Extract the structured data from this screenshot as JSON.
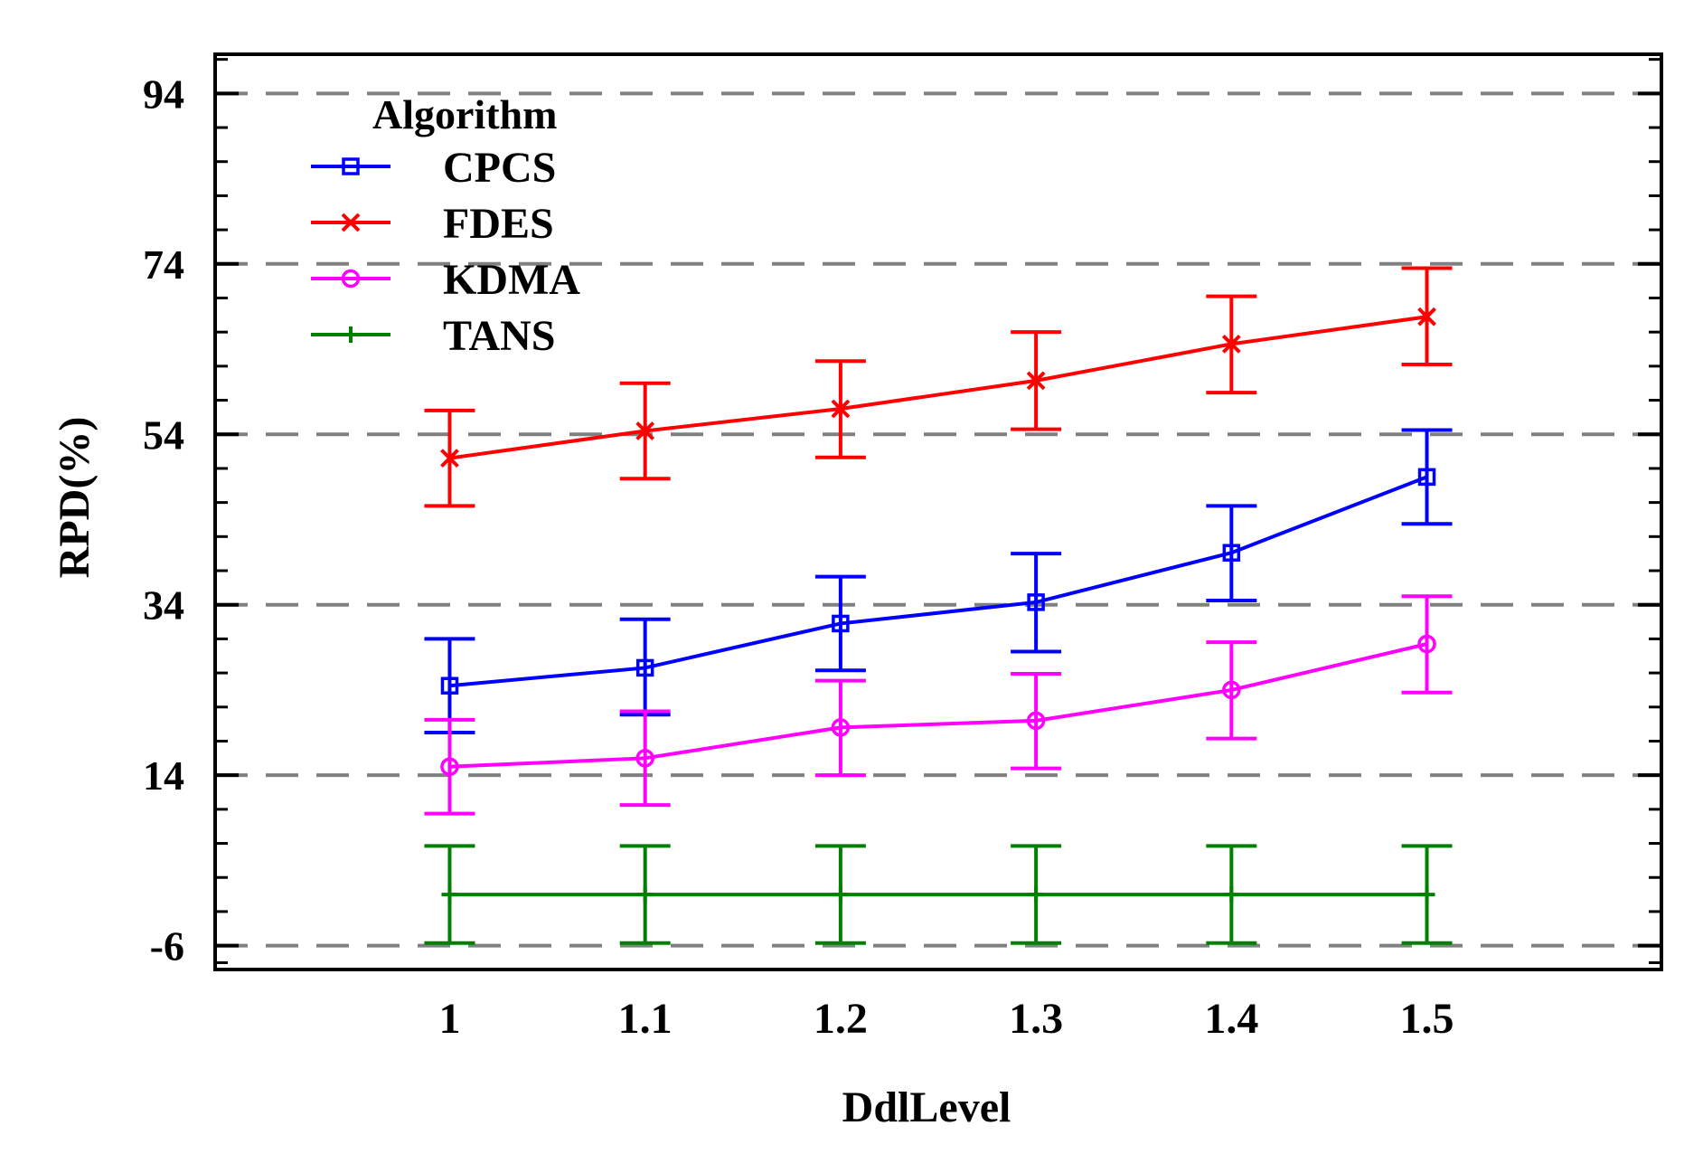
{
  "chart_data": {
    "type": "line",
    "xlabel": "DdlLevel",
    "ylabel": "RPD(%)",
    "x": [
      1,
      1.1,
      1.2,
      1.3,
      1.4,
      1.5
    ],
    "x_tick_labels": [
      "1",
      "1.1",
      "1.2",
      "1.3",
      "1.4",
      "1.5"
    ],
    "xlim": [
      0.88,
      1.62
    ],
    "ylim": [
      -8.8,
      98.6
    ],
    "y_ticks": [
      -6,
      14,
      34,
      54,
      74,
      94
    ],
    "y_tick_labels": [
      "-6",
      "14",
      "34",
      "54",
      "74",
      "94"
    ],
    "grid": "horizontal dashed at major ticks",
    "legend": {
      "title": "Algorithm",
      "position": "top-left"
    },
    "series": [
      {
        "name": "CPCS",
        "color": "#0000ff",
        "marker": "square",
        "values": [
          24.5,
          26.6,
          31.8,
          34.3,
          40.1,
          49.0
        ],
        "err_low": [
          19.0,
          21.1,
          26.3,
          28.5,
          34.5,
          43.5
        ],
        "err_high": [
          30.0,
          32.3,
          37.3,
          40.0,
          45.6,
          54.5
        ]
      },
      {
        "name": "FDES",
        "color": "#ff0000",
        "marker": "x",
        "values": [
          51.2,
          54.4,
          57.0,
          60.3,
          64.6,
          67.8
        ],
        "err_low": [
          45.6,
          48.8,
          51.3,
          54.6,
          58.9,
          62.2
        ],
        "err_high": [
          56.8,
          60.0,
          62.6,
          66.0,
          70.2,
          73.5
        ]
      },
      {
        "name": "KDMA",
        "color": "#ff00ff",
        "marker": "circle",
        "values": [
          15.0,
          16.0,
          19.6,
          20.4,
          24.0,
          29.4
        ],
        "err_low": [
          9.5,
          10.5,
          14.0,
          14.8,
          18.3,
          23.7
        ],
        "err_high": [
          20.5,
          21.5,
          25.1,
          25.9,
          29.6,
          35.0
        ]
      },
      {
        "name": "TANS",
        "color": "#008000",
        "marker": "plus",
        "values": [
          0.0,
          0.0,
          0.0,
          0.0,
          0.0,
          0.0
        ],
        "err_low": [
          -5.7,
          -5.7,
          -5.7,
          -5.7,
          -5.7,
          -5.7
        ],
        "err_high": [
          5.7,
          5.7,
          5.7,
          5.7,
          5.7,
          5.7
        ]
      }
    ]
  },
  "colors": {
    "axis": "#000000",
    "grid": "#808080",
    "background": "#ffffff"
  }
}
